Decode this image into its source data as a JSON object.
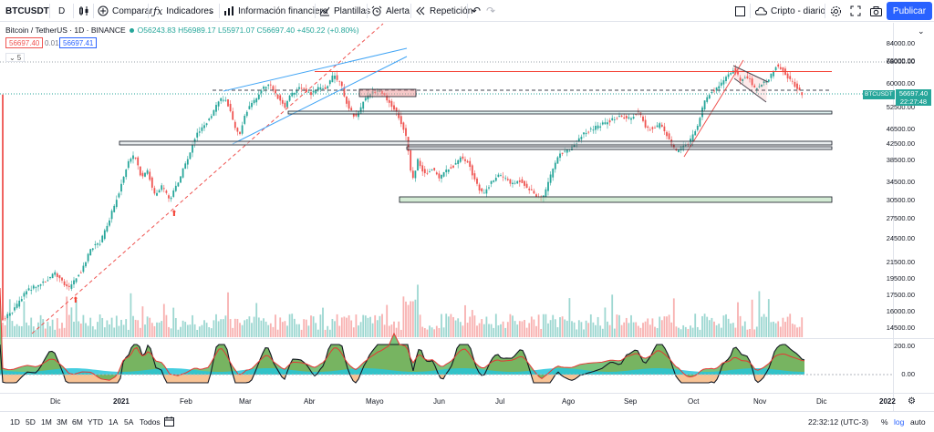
{
  "toolbar": {
    "symbol": "BTCUSDT",
    "interval": "D",
    "compare": "Comparar",
    "indicators": "Indicadores",
    "financials": "Información financiera",
    "templates": "Plantillas",
    "alert": "Alerta",
    "replay": "Repetición",
    "layout_name": "Cripto - diario",
    "publish": "Publicar"
  },
  "legend": {
    "title": "Bitcoin / TetherUS · 1D · BINANCE",
    "ohlc": "O56243.83 H56989.17 L55971.07 C56697.40 +450.22 (+0.80%)",
    "bid": "56697.40",
    "spread": "0.01",
    "ask": "56697.41",
    "indicator_value": "5"
  },
  "price_axis": {
    "ticks": [
      "84000.00",
      "76000.00",
      "68000.00",
      "60000.00",
      "52500.00",
      "46500.00",
      "42500.00",
      "38500.00",
      "34500.00",
      "30500.00",
      "27500.00",
      "24500.00",
      "21500.00",
      "19500.00",
      "17500.00",
      "16000.00",
      "14500.00"
    ],
    "current_price": "56697.40",
    "countdown": "22:27:48",
    "symbol_tag": "BTCUSDT"
  },
  "osc_axis": {
    "ticks": [
      "200.00",
      "0.00"
    ]
  },
  "time_axis": {
    "labels": [
      "Dic",
      "2021",
      "Feb",
      "Mar",
      "Abr",
      "Mayo",
      "Jun",
      "Jul",
      "Ago",
      "Sep",
      "Oct",
      "Nov",
      "Dic",
      "2022"
    ]
  },
  "bottom_bar": {
    "ranges": [
      "1D",
      "5D",
      "1M",
      "3M",
      "6M",
      "YTD",
      "1A",
      "5A",
      "Todos"
    ],
    "clock": "22:32:12 (UTC-3)",
    "percent": "%",
    "log": "log",
    "auto": "auto"
  },
  "colors": {
    "up": "#26a69a",
    "down": "#ef5350",
    "accent": "#2962ff",
    "trendline": "#2196f3",
    "resistance": "#f44336"
  }
}
